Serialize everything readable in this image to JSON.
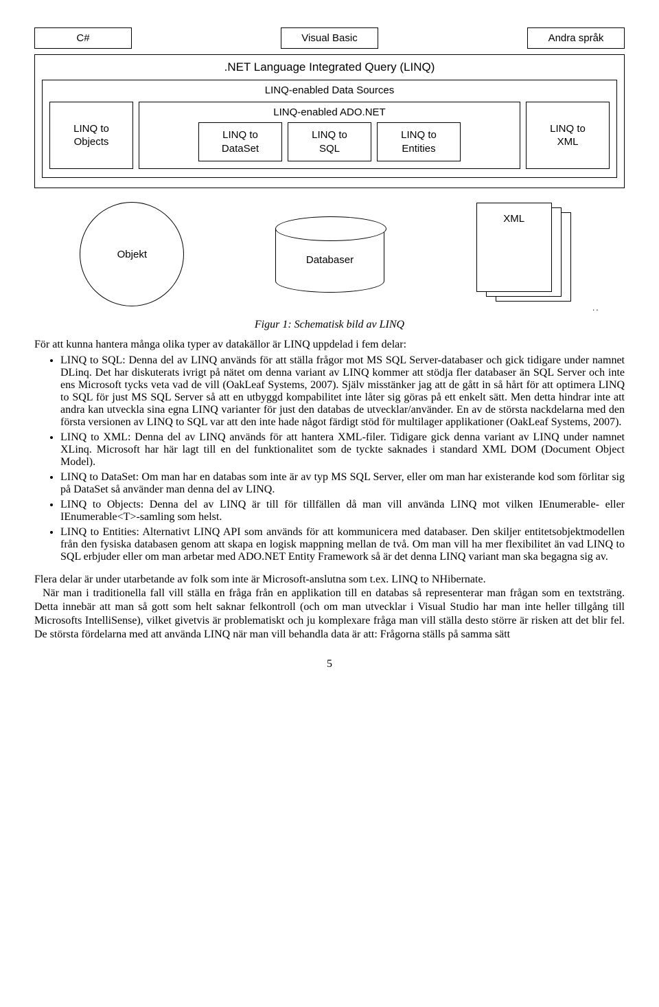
{
  "diagram": {
    "langs": [
      "C#",
      "Visual Basic",
      "Andra språk"
    ],
    "main_title": ".NET Language Integrated Query (LINQ)",
    "sub_title": "LINQ-enabled Data Sources",
    "linq_objects": "LINQ to\nObjects",
    "ado_title": "LINQ-enabled ADO.NET",
    "ado_items": [
      "LINQ to\nDataSet",
      "LINQ to\nSQL",
      "LINQ to\nEntities"
    ],
    "linq_xml": "LINQ to\nXML",
    "sources": {
      "objekt": "Objekt",
      "databaser": "Databaser",
      "xml": "XML"
    }
  },
  "caption": "Figur 1: Schematisk bild av LINQ",
  "intro": "För att kunna hantera många olika typer av datakällor är LINQ uppdelad i fem delar:",
  "bullets": [
    "LINQ to SQL: Denna del av LINQ används för att ställa frågor mot MS SQL Server-databaser och gick tidigare under namnet DLinq. Det har diskuterats ivrigt på nätet om denna variant av LINQ kommer att stödja fler databaser än SQL Server och inte ens Microsoft tycks veta vad de vill (OakLeaf Systems, 2007). Själv misstänker jag att de gått in så hårt för att optimera LINQ to SQL för just MS SQL Server så att en utbyggd kompabilitet inte låter sig göras på ett enkelt sätt. Men detta hindrar inte att andra kan utveckla sina egna LINQ varianter för just den databas de utvecklar/använder. En av de största nackdelarna med den första versionen av LINQ to SQL var att den inte hade något färdigt stöd för multilager applikationer (OakLeaf Systems, 2007).",
    "LINQ to XML: Denna del av LINQ används för att hantera XML-filer. Tidigare gick denna variant av LINQ under namnet XLinq. Microsoft har här lagt till en del funktionalitet som de tyckte saknades i standard XML DOM (Document Object Model).",
    "LINQ to DataSet: Om man har en databas som inte är av typ MS SQL Server, eller om man har existerande kod som förlitar sig på DataSet så använder man denna del av LINQ.",
    "LINQ to Objects: Denna del av LINQ är till för tillfällen då man vill använda LINQ mot vilken IEnumerable- eller IEnumerable<T>-samling som helst.",
    "LINQ to Entities: Alternativt LINQ API som används för att kommunicera med databaser. Den skiljer entitetsobjektmodellen från den fysiska databasen genom att skapa en logisk mappning mellan de två. Om man vill ha mer flexibilitet än vad LINQ to SQL erbjuder eller om man arbetar med ADO.NET Entity Framework så är det denna LINQ variant man ska begagna sig av."
  ],
  "para1": "Flera delar är under utarbetande av folk som inte är Microsoft-anslutna som t.ex. LINQ to NHibernate.",
  "para2": "När man i traditionella fall vill ställa en fråga från en applikation till en databas så representerar man frågan som en textsträng. Detta innebär att man så gott som helt saknar felkontroll (och om man utvecklar i Visual Studio har man inte heller tillgång till Microsofts IntelliSense), vilket givetvis är problematiskt och ju komplexare fråga man vill ställa desto större är risken att det blir fel. De största fördelarna med att använda LINQ när man vill behandla data är att: Frågorna ställs på samma sätt",
  "pagenum": "5"
}
